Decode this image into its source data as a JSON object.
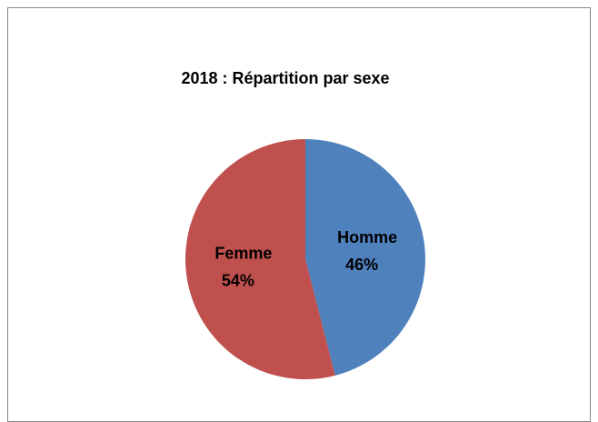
{
  "chart_data": {
    "type": "pie",
    "title": "2018 : Répartition par sexe",
    "categories": [
      "Homme",
      "Femme"
    ],
    "values": [
      46,
      54
    ],
    "value_labels": [
      "46%",
      "54%"
    ],
    "colors": [
      "#4f81bd",
      "#c0504d"
    ]
  }
}
